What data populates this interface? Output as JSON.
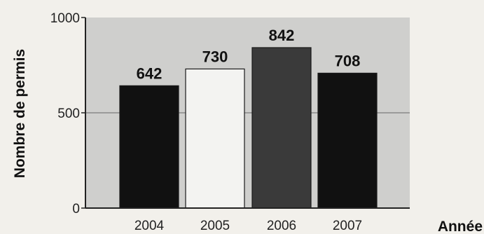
{
  "chart_data": {
    "type": "bar",
    "title": "",
    "xlabel": "Année",
    "ylabel": "Nombre de permis",
    "categories": [
      "2004",
      "2005",
      "2006",
      "2007"
    ],
    "values": [
      642,
      730,
      842,
      708
    ],
    "ylim": [
      0,
      1000
    ],
    "yticks": [
      0,
      500,
      1000
    ],
    "grid": true,
    "legend": "none",
    "bar_colors": [
      "#111111",
      "#f3f3f1",
      "#3a3a3a",
      "#111111"
    ],
    "plot_background": "#cfcfcd",
    "gridline_color": "#8a8a8a"
  }
}
